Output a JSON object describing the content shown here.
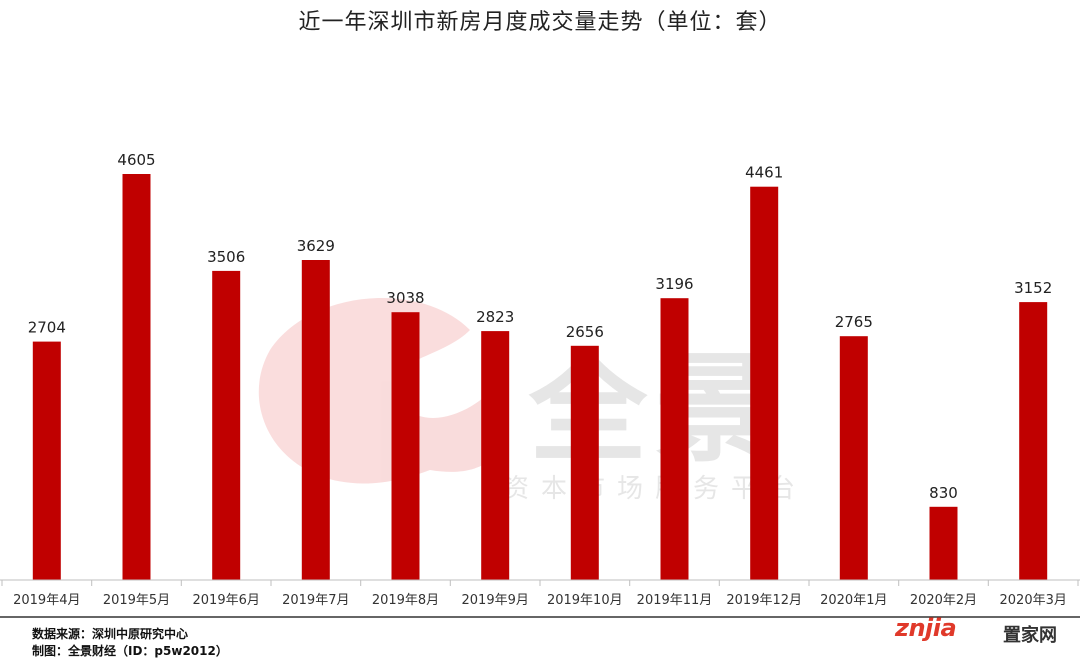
{
  "chart_data": {
    "type": "bar",
    "title": "近一年深圳市新房月度成交量走势（单位：套）",
    "xlabel": "",
    "ylabel": "",
    "categories": [
      "2019年4月",
      "2019年5月",
      "2019年6月",
      "2019年7月",
      "2019年8月",
      "2019年9月",
      "2019年10月",
      "2019年11月",
      "2019年12月",
      "2020年1月",
      "2020年2月",
      "2020年3月"
    ],
    "values": [
      2704,
      4605,
      3506,
      3629,
      3038,
      2823,
      2656,
      3196,
      4461,
      2765,
      830,
      3152
    ],
    "ylim": [
      0,
      5000
    ],
    "grid": false,
    "legend": "none",
    "bar_color": "#c00000",
    "data_labels": true
  },
  "footer": {
    "source": "数据来源：深圳中原研究中心",
    "credit": "制图：全景财经（ID：p5w2012）"
  },
  "watermark": {
    "logo_text": "全景",
    "tagline": "资本市场服务平台",
    "site_brand": "znjia",
    "site_brand_cn": "置家网"
  },
  "colors": {
    "bar": "#c00000",
    "watermark": "#e6e6e6",
    "watermark_accent": "#f7d3d3"
  }
}
